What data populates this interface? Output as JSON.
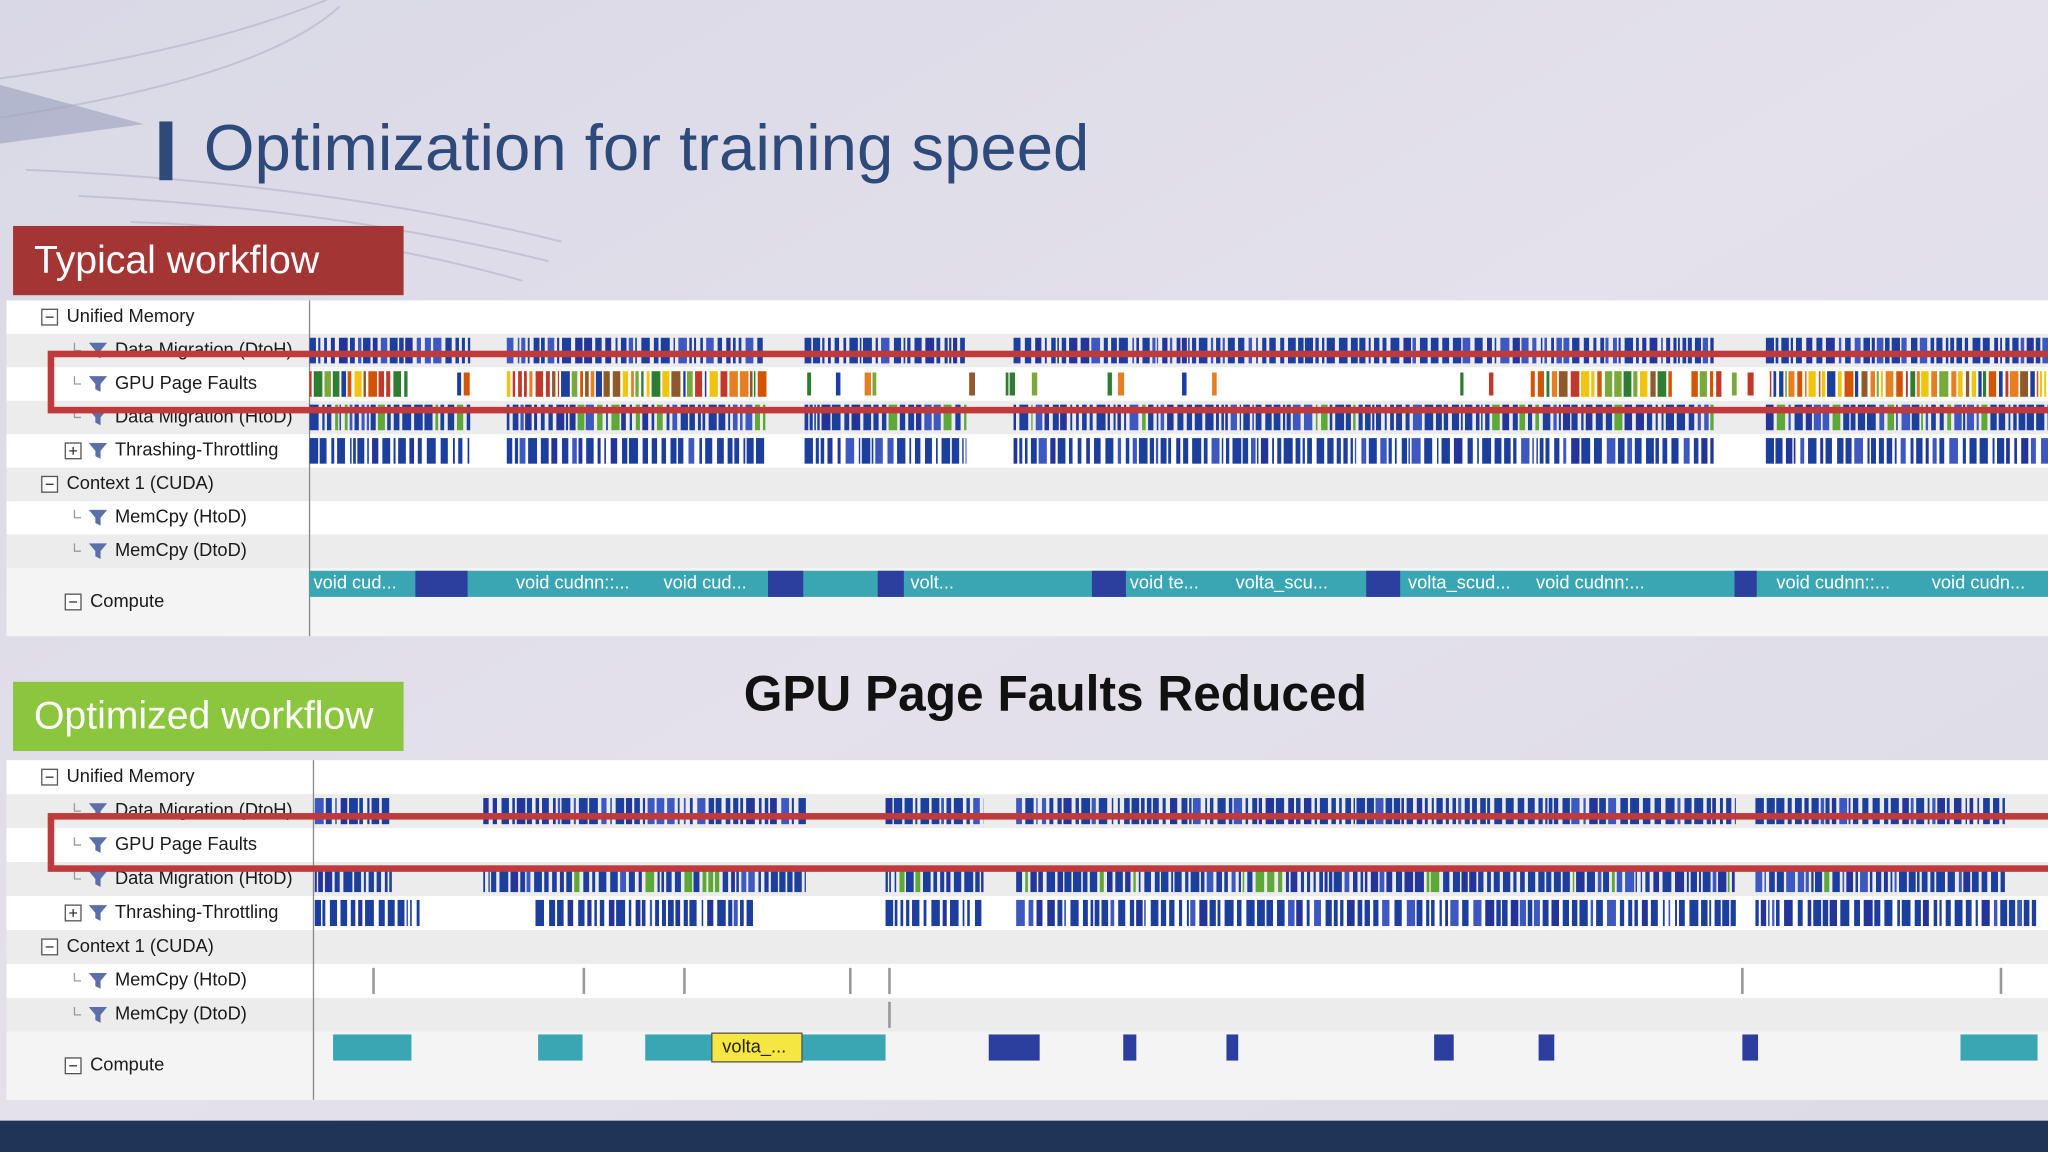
{
  "title": "Optimization for training speed",
  "typical": {
    "label": "Typical workflow",
    "rows": [
      "Unified Memory",
      "Data Migration (DtoH)",
      "GPU Page Faults",
      "Data Migration (HtoD)",
      "Thrashing-Throttling",
      "Context 1 (CUDA)",
      "MemCpy (HtoD)",
      "MemCpy (DtoD)",
      "Compute"
    ],
    "kernels": [
      "void cud...",
      "void cudnn::...",
      "void cud...",
      "volt...",
      "void te...",
      "volta_scu...",
      "volta_scud...",
      "void cudnn:...",
      "void cudnn::...",
      "void cudn..."
    ]
  },
  "annotation": "GPU Page Faults Reduced",
  "optimized": {
    "label": "Optimized workflow",
    "rows": [
      "Unified Memory",
      "Data Migration (DtoH)",
      "GPU Page Faults",
      "Data Migration (HtoD)",
      "Thrashing-Throttling",
      "Context 1 (CUDA)",
      "MemCpy (HtoD)",
      "MemCpy (DtoD)",
      "Compute"
    ],
    "kernels": [
      "volta_..."
    ]
  }
}
